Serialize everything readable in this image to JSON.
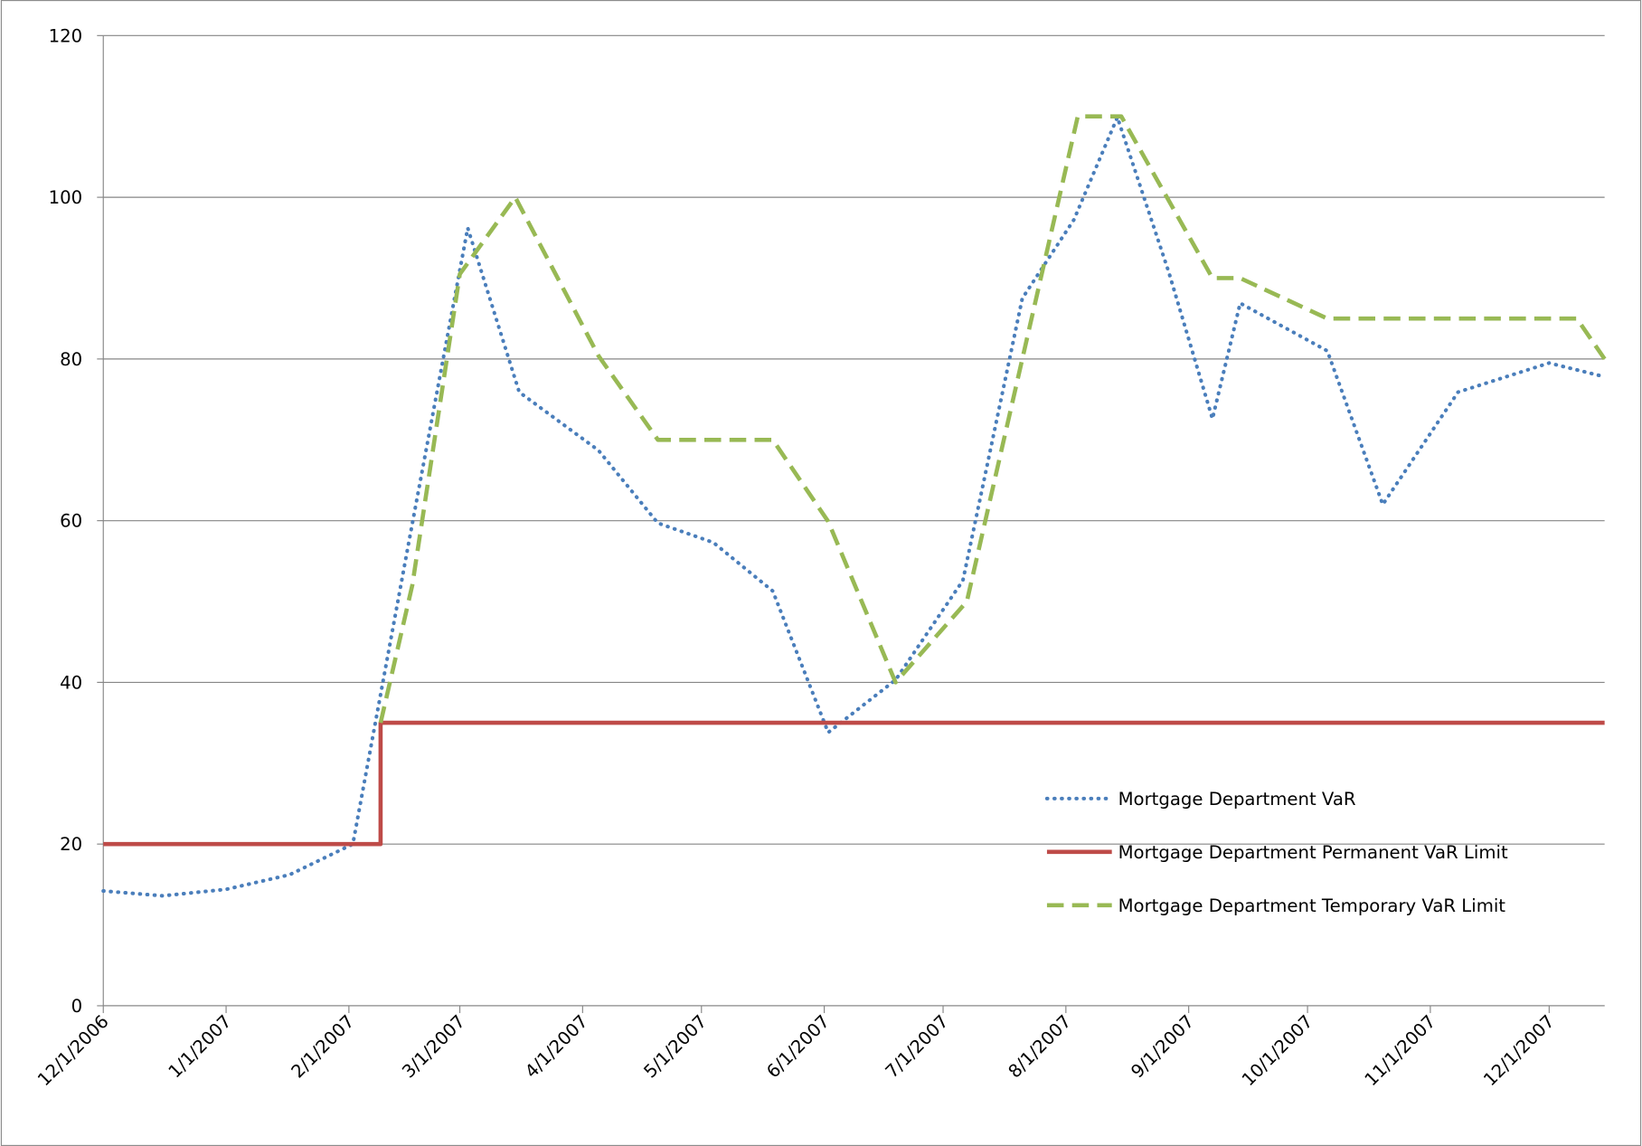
{
  "chart_data": {
    "type": "line",
    "xlim": [
      "12/1/2006",
      "12/15/2007"
    ],
    "xticks": [
      "12/1/2006",
      "1/1/2007",
      "2/1/2007",
      "3/1/2007",
      "4/1/2007",
      "5/1/2007",
      "6/1/2007",
      "7/1/2007",
      "8/1/2007",
      "9/1/2007",
      "10/1/2007",
      "11/1/2007",
      "12/1/2007"
    ],
    "ylim": [
      0,
      120
    ],
    "yticks": [
      0,
      20,
      40,
      60,
      80,
      100,
      120
    ],
    "grid": true,
    "legend": "lower right",
    "series": [
      {
        "name": "Mortgage Department VaR",
        "color": "#4a7ebb",
        "style": "dotted",
        "x": [
          "12/1/2006",
          "12/16/2006",
          "1/1/2007",
          "1/17/2007",
          "2/2/2007",
          "2/16/2007",
          "3/3/2007",
          "3/16/2007",
          "4/5/2007",
          "4/20/2007",
          "5/4/2007",
          "5/19/2007",
          "6/2/2007",
          "6/19/2007",
          "7/6/2007",
          "7/21/2007",
          "8/3/2007",
          "8/14/2007",
          "8/27/2007",
          "9/7/2007",
          "9/14/2007",
          "10/6/2007",
          "10/20/2007",
          "11/8/2007",
          "12/1/2007",
          "12/15/2007"
        ],
        "values": [
          14.2,
          13.6,
          14.4,
          16.2,
          20,
          57,
          96.2,
          75.9,
          68.7,
          59.7,
          57.3,
          51.3,
          33.8,
          40.3,
          52.6,
          87.5,
          97.2,
          109.9,
          90.7,
          72.6,
          86.9,
          81,
          62,
          75.9,
          79.5,
          77.8
        ]
      },
      {
        "name": "Mortgage Department Permanent VaR Limit",
        "color": "#be4b48",
        "style": "solid",
        "x": [
          "12/1/2006",
          "2/9/2007",
          "2/9/2007",
          "12/15/2007"
        ],
        "values": [
          20,
          20,
          35,
          35
        ]
      },
      {
        "name": "Mortgage Department Temporary VaR Limit",
        "color": "#98b954",
        "style": "dashed",
        "x": [
          "2/9/2007",
          "2/17/2007",
          "3/1/2007",
          "3/15/2007",
          "4/5/2007",
          "4/20/2007",
          "5/19/2007",
          "6/2/2007",
          "6/19/2007",
          "7/7/2007",
          "7/21/2007",
          "8/4/2007",
          "8/15/2007",
          "9/7/2007",
          "9/14/2007",
          "10/6/2007",
          "12/8/2007",
          "12/15/2007"
        ],
        "values": [
          35,
          52,
          90.5,
          100,
          80.4,
          70,
          70,
          59.9,
          40,
          50,
          80,
          110,
          110,
          90,
          90,
          85,
          85,
          80
        ]
      }
    ]
  }
}
